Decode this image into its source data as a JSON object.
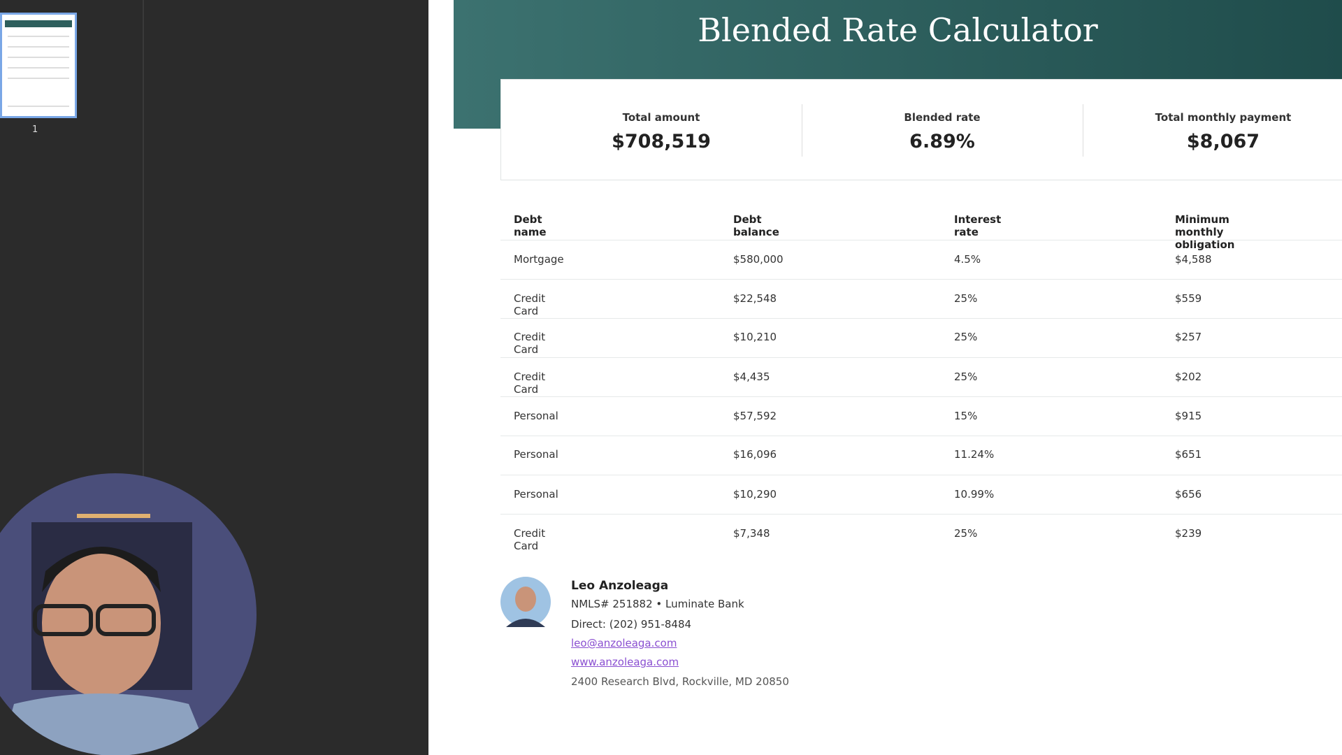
{
  "slide_panel": {
    "thumbnail_number": "1"
  },
  "document": {
    "title": "Blended Rate Calculator",
    "summary": [
      {
        "label": "Total amount",
        "value": "$708,519"
      },
      {
        "label": "Blended rate",
        "value": "6.89%"
      },
      {
        "label": "Total monthly payment",
        "value": "$8,067"
      }
    ],
    "table": {
      "headers": [
        "Debt name",
        "Debt balance",
        "Interest rate",
        "Minimum monthly obligation"
      ],
      "rows": [
        [
          "Mortgage",
          "$580,000",
          "4.5%",
          "$4,588"
        ],
        [
          "Credit Card",
          "$22,548",
          "25%",
          "$559"
        ],
        [
          "Credit Card",
          "$10,210",
          "25%",
          "$257"
        ],
        [
          "Credit Card",
          "$4,435",
          "25%",
          "$202"
        ],
        [
          "Personal",
          "$57,592",
          "15%",
          "$915"
        ],
        [
          "Personal",
          "$16,096",
          "11.24%",
          "$651"
        ],
        [
          "Personal",
          "$10,290",
          "10.99%",
          "$656"
        ],
        [
          "Credit Card",
          "$7,348",
          "25%",
          "$239"
        ]
      ]
    },
    "contact": {
      "name": "Leo Anzoleaga",
      "nmls": "NMLS# 251882 • Luminate Bank",
      "phone": "Direct: (202) 951-8484",
      "email": "leo@anzoleaga.com",
      "website": "www.anzoleaga.com",
      "address": "2400 Research Blvd, Rockville, MD 20850"
    }
  }
}
